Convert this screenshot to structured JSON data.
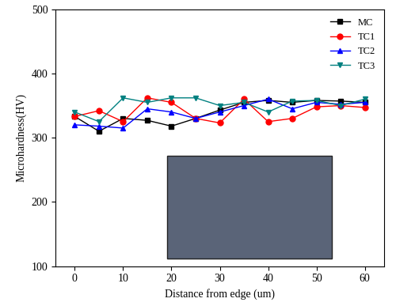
{
  "chart_data": {
    "type": "line",
    "x_label": "Distance from edge (um)",
    "y_label": "Microhardness(HV)",
    "x": [
      0,
      5,
      10,
      15,
      20,
      25,
      30,
      35,
      40,
      45,
      50,
      55,
      60
    ],
    "series": [
      {
        "name": "MC",
        "color": "#000000",
        "marker": "square",
        "line_style": "solid",
        "values": [
          333,
          310,
          330,
          327,
          318,
          330,
          343,
          355,
          358,
          355,
          358,
          357,
          355
        ]
      },
      {
        "name": "TC1",
        "color": "#ff0000",
        "marker": "circle",
        "line_style": "solid",
        "values": [
          333,
          342,
          325,
          362,
          355,
          330,
          323,
          360,
          325,
          330,
          348,
          350,
          347
        ]
      },
      {
        "name": "TC2",
        "color": "#0000ff",
        "marker": "triangle_up",
        "line_style": "solid",
        "values": [
          320,
          318,
          315,
          345,
          340,
          330,
          340,
          350,
          360,
          345,
          355,
          352,
          355
        ]
      },
      {
        "name": "TC3",
        "color": "#008080",
        "marker": "triangle_down",
        "line_style": "solid",
        "values": [
          340,
          325,
          362,
          355,
          362,
          362,
          350,
          355,
          340,
          357,
          358,
          350,
          360
        ]
      }
    ],
    "xlim": [
      -4,
      64
    ],
    "xticks": [
      0,
      10,
      20,
      30,
      40,
      50,
      60
    ],
    "ylim": [
      100,
      500
    ],
    "yticks": [
      100,
      200,
      300,
      400,
      500
    ],
    "legend": "upper right"
  }
}
